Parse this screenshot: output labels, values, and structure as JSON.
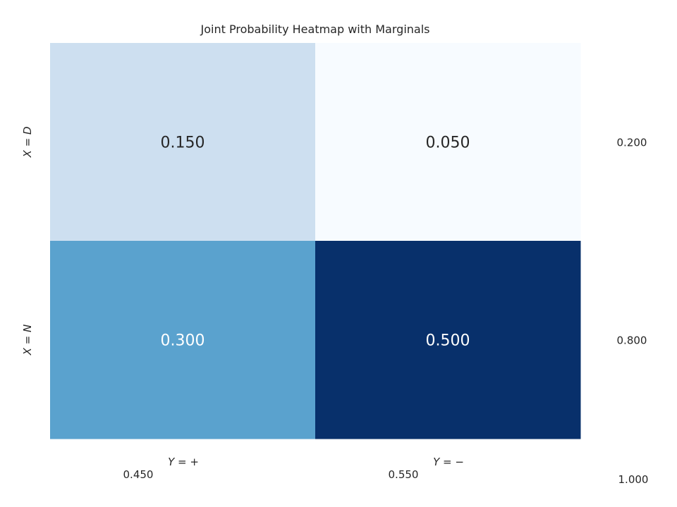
{
  "chart_data": {
    "type": "heatmap",
    "title": "Joint Probability Heatmap with Marginals",
    "row_labels": [
      "X = D",
      "X = N"
    ],
    "col_labels": [
      "Y = +",
      "Y = −"
    ],
    "values": [
      [
        0.15,
        0.05
      ],
      [
        0.3,
        0.5
      ]
    ],
    "value_labels": [
      [
        "0.150",
        "0.050"
      ],
      [
        "0.300",
        "0.500"
      ]
    ],
    "row_marginals": [
      "0.200",
      "0.800"
    ],
    "col_marginals": [
      "0.450",
      "0.550"
    ],
    "total": "1.000",
    "colormap": "Blues",
    "value_range": [
      0.05,
      0.5
    ],
    "colors": {
      "cells": [
        [
          "#cddff0",
          "#f7fbff"
        ],
        [
          "#5aa2ce",
          "#08306b"
        ]
      ],
      "text_dark": "#262626",
      "text_light": "#ffffff"
    }
  }
}
